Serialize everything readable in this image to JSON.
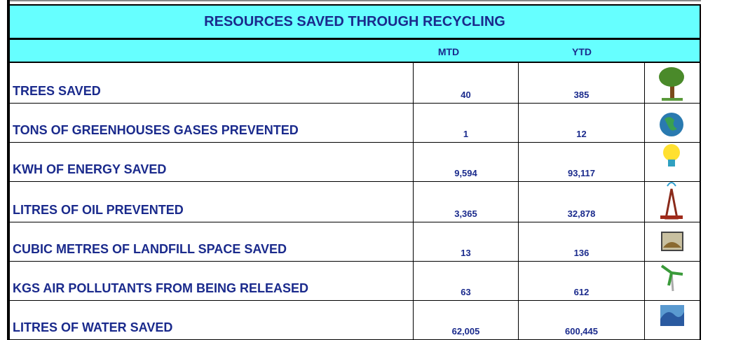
{
  "header": {
    "title": "RESOURCES SAVED THROUGH RECYCLING",
    "columns": [
      "MTD",
      "YTD"
    ]
  },
  "table": {
    "rows": [
      [
        "TREES SAVED",
        "40",
        "385"
      ],
      [
        "TONS OF GREENHOUSES GASES PREVENTED",
        "1",
        "12"
      ],
      [
        "KWH OF ENERGY SAVED",
        "9,594",
        "93,117"
      ],
      [
        "LITRES OF OIL PREVENTED",
        "3,365",
        "32,878"
      ],
      [
        "CUBIC METRES OF LANDFILL SPACE SAVED",
        "13",
        "136"
      ],
      [
        "KGS AIR POLLUTANTS FROM BEING RELEASED",
        "63",
        "612"
      ],
      [
        "LITRES OF WATER SAVED",
        "62,005",
        "600,445"
      ]
    ]
  }
}
